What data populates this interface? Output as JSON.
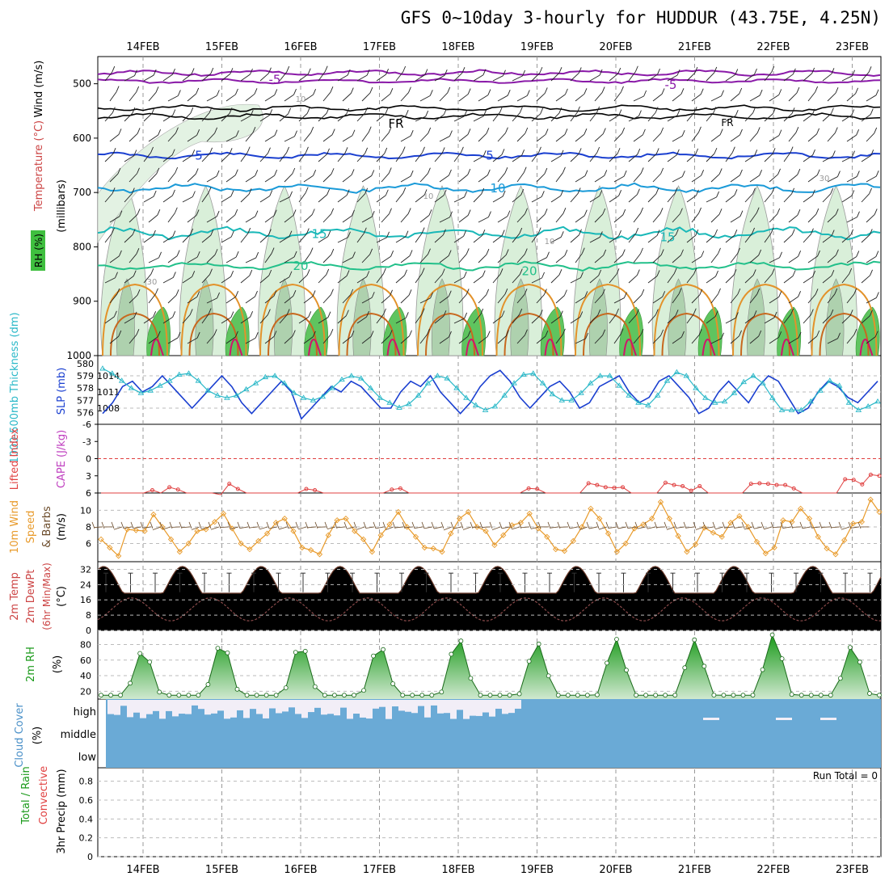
{
  "chart_data": {
    "type": "meteogram",
    "title": "GFS 0~10day 3-hourly for HUDDUR (43.75E, 4.25N)",
    "dates": [
      "14FEB",
      "15FEB",
      "16FEB",
      "17FEB",
      "18FEB",
      "19FEB",
      "20FEB",
      "21FEB",
      "22FEB",
      "23FEB"
    ],
    "panels": {
      "upper": {
        "ylabel_wind": "Wind (m/s)",
        "ylabel_temp": "Temperature (°C)",
        "ylabel_unit": "(millibars)",
        "ylabel_rh": "RH (%)",
        "y_ticks": [
          "500",
          "600",
          "700",
          "800",
          "900",
          "1000"
        ],
        "ylim": [
          450,
          1000
        ],
        "isotherm_labels": [
          "-5",
          "FR",
          "5",
          "10",
          "15",
          "20"
        ],
        "rh_labels": [
          "10",
          "30"
        ]
      },
      "pressure": {
        "ylabel_left": "1000-500mb Thickness (dm)",
        "ylabel_right": "SLP (mb)",
        "left_ticks": [
          "580",
          "579",
          "578",
          "577",
          "576"
        ],
        "right_ticks": [
          "1014",
          "1011",
          "1008"
        ],
        "slp": [
          1007,
          1009,
          1012,
          1013,
          1011,
          1012,
          1014,
          1012,
          1010,
          1008,
          1010,
          1012,
          1014,
          1012,
          1009,
          1007,
          1009,
          1011,
          1013,
          1011,
          1006,
          1008,
          1010,
          1012,
          1011,
          1013,
          1012,
          1010,
          1008,
          1008,
          1011,
          1013,
          1012,
          1014,
          1011,
          1009,
          1007,
          1009,
          1012,
          1014,
          1015,
          1013,
          1010,
          1008,
          1010,
          1012,
          1013,
          1011,
          1008,
          1009,
          1012,
          1013,
          1014,
          1011,
          1009,
          1010,
          1013,
          1014,
          1012,
          1010,
          1007,
          1008,
          1011,
          1013,
          1011,
          1009,
          1012,
          1014,
          1013,
          1010,
          1007,
          1008,
          1011,
          1013,
          1012,
          1010,
          1009,
          1011,
          1013
        ],
        "thickness": [
          579.6,
          579.2,
          578.6,
          578.0,
          577.6,
          577.8,
          578.2,
          578.6,
          579.1,
          579.2,
          578.6,
          577.8,
          577.4,
          577.2,
          577.4,
          577.9,
          578.4,
          578.9,
          579.0,
          578.4,
          577.6,
          577.2,
          577.0,
          577.3,
          578.0,
          578.7,
          579.0,
          578.8,
          578.0,
          577.2,
          576.8,
          576.4,
          576.7,
          577.4,
          578.4,
          579.0,
          578.8,
          578.0,
          577.2,
          576.6,
          576.2,
          576.5,
          577.4,
          578.4,
          579.1,
          579.2,
          578.4,
          577.5,
          577.0,
          577.0,
          577.6,
          578.4,
          579.0,
          579.0,
          578.2,
          577.4,
          576.8,
          576.6,
          577.4,
          578.6,
          579.3,
          579.0,
          578.0,
          577.2,
          576.8,
          576.9,
          577.6,
          578.5,
          579.0,
          578.4,
          577.2,
          576.2,
          576.2,
          576.2,
          576.9,
          577.8,
          578.6,
          578.2,
          576.8,
          576.2,
          576.5,
          576.9
        ]
      },
      "stability": {
        "ylabel_left": "Lifted Index",
        "ylabel_right": "CAPE (J/kg)",
        "y_ticks": [
          "-6",
          "-3",
          "0",
          "3",
          "6"
        ],
        "lifted_index": [
          6,
          6,
          6,
          6,
          6,
          6,
          5.5,
          6,
          5,
          5.4,
          6,
          6,
          6,
          6,
          6.3,
          4.4,
          5.3,
          6,
          6,
          6,
          6,
          6,
          6,
          6,
          5.3,
          5.5,
          6,
          6,
          6,
          6,
          6,
          6,
          6,
          6,
          5.4,
          5.2,
          6,
          6,
          6,
          6,
          6,
          6,
          6,
          6,
          6,
          6,
          6,
          6,
          6,
          6,
          5.2,
          5.3,
          6,
          6,
          6,
          6,
          6,
          4.3,
          4.6,
          5.0,
          5.1,
          5.0,
          6,
          6,
          6,
          6,
          4.2,
          4.6,
          4.8,
          5.6,
          4.8,
          6,
          6,
          6,
          6,
          6,
          4.4,
          4.3,
          4.4,
          4.6,
          4.6,
          5.2,
          6,
          6,
          6,
          6,
          6,
          3.6,
          3.7,
          4.5,
          2.8,
          3.0
        ]
      },
      "wind10m": {
        "ylabel_left": "10m Wind",
        "ylabel_mid": "Speed",
        "ylabel_right": "& Barbs",
        "unit": "(m/s)",
        "y_ticks": [
          "10",
          "8",
          "6"
        ],
        "speed": [
          6.5,
          5.5,
          4.5,
          7.7,
          7.6,
          7.5,
          9.5,
          8.0,
          6.5,
          5.0,
          6.0,
          7.5,
          7.7,
          8.6,
          9.6,
          7.8,
          6.0,
          5.3,
          6.3,
          7.2,
          8.5,
          9.0,
          7.5,
          5.5,
          5.2,
          4.7,
          7.0,
          8.8,
          9.0,
          7.5,
          6.5,
          5.0,
          7.0,
          8.3,
          9.8,
          8.0,
          6.8,
          5.5,
          5.4,
          5.0,
          7.2,
          9.0,
          9.8,
          8.0,
          7.5,
          5.8,
          7.0,
          8.2,
          8.5,
          9.6,
          7.8,
          6.8,
          5.3,
          5.1,
          6.3,
          8.0,
          10.2,
          9.0,
          7.2,
          5.0,
          6.0,
          7.8,
          8.3,
          9.0,
          11.0,
          9.0,
          6.9,
          5.0,
          5.9,
          7.9,
          7.3,
          6.8,
          8.5,
          9.3,
          8.0,
          6.2,
          4.8,
          5.5,
          8.8,
          8.6,
          10.2,
          9.0,
          6.8,
          5.4,
          4.7,
          6.4,
          8.4,
          8.6,
          11.3,
          9.8
        ]
      },
      "temp2m": {
        "ylabel_a": "2m Temp",
        "ylabel_b": "2m DewPt",
        "ylabel_c": "(6hr Min/Max)",
        "unit": "(°C)",
        "y_ticks": [
          "32",
          "24",
          "16",
          "8",
          "0"
        ],
        "temp_min": 19.5,
        "temp_max": 33.5,
        "dew_min": 5,
        "dew_max": 17
      },
      "rh2m": {
        "ylabel": "2m RH",
        "unit": "(%)",
        "y_ticks": [
          "80",
          "60",
          "40",
          "20"
        ],
        "rh_min": 15,
        "rh_peaks": [
          72,
          82,
          80,
          79,
          88,
          82,
          87,
          86,
          93,
          78
        ]
      },
      "cloud": {
        "ylabel": "Cloud Cover",
        "unit": "(%)",
        "level_labels": [
          "high",
          "middle",
          "low"
        ]
      },
      "precip": {
        "ylabel_a": "Total / Rain",
        "ylabel_b": "Convective",
        "ylabel_c": "3hr Precip (mm)",
        "y_ticks": [
          "0.8",
          "0.6",
          "0.4",
          "0.2",
          "0"
        ],
        "run_total": "Run Total = 0"
      }
    }
  }
}
